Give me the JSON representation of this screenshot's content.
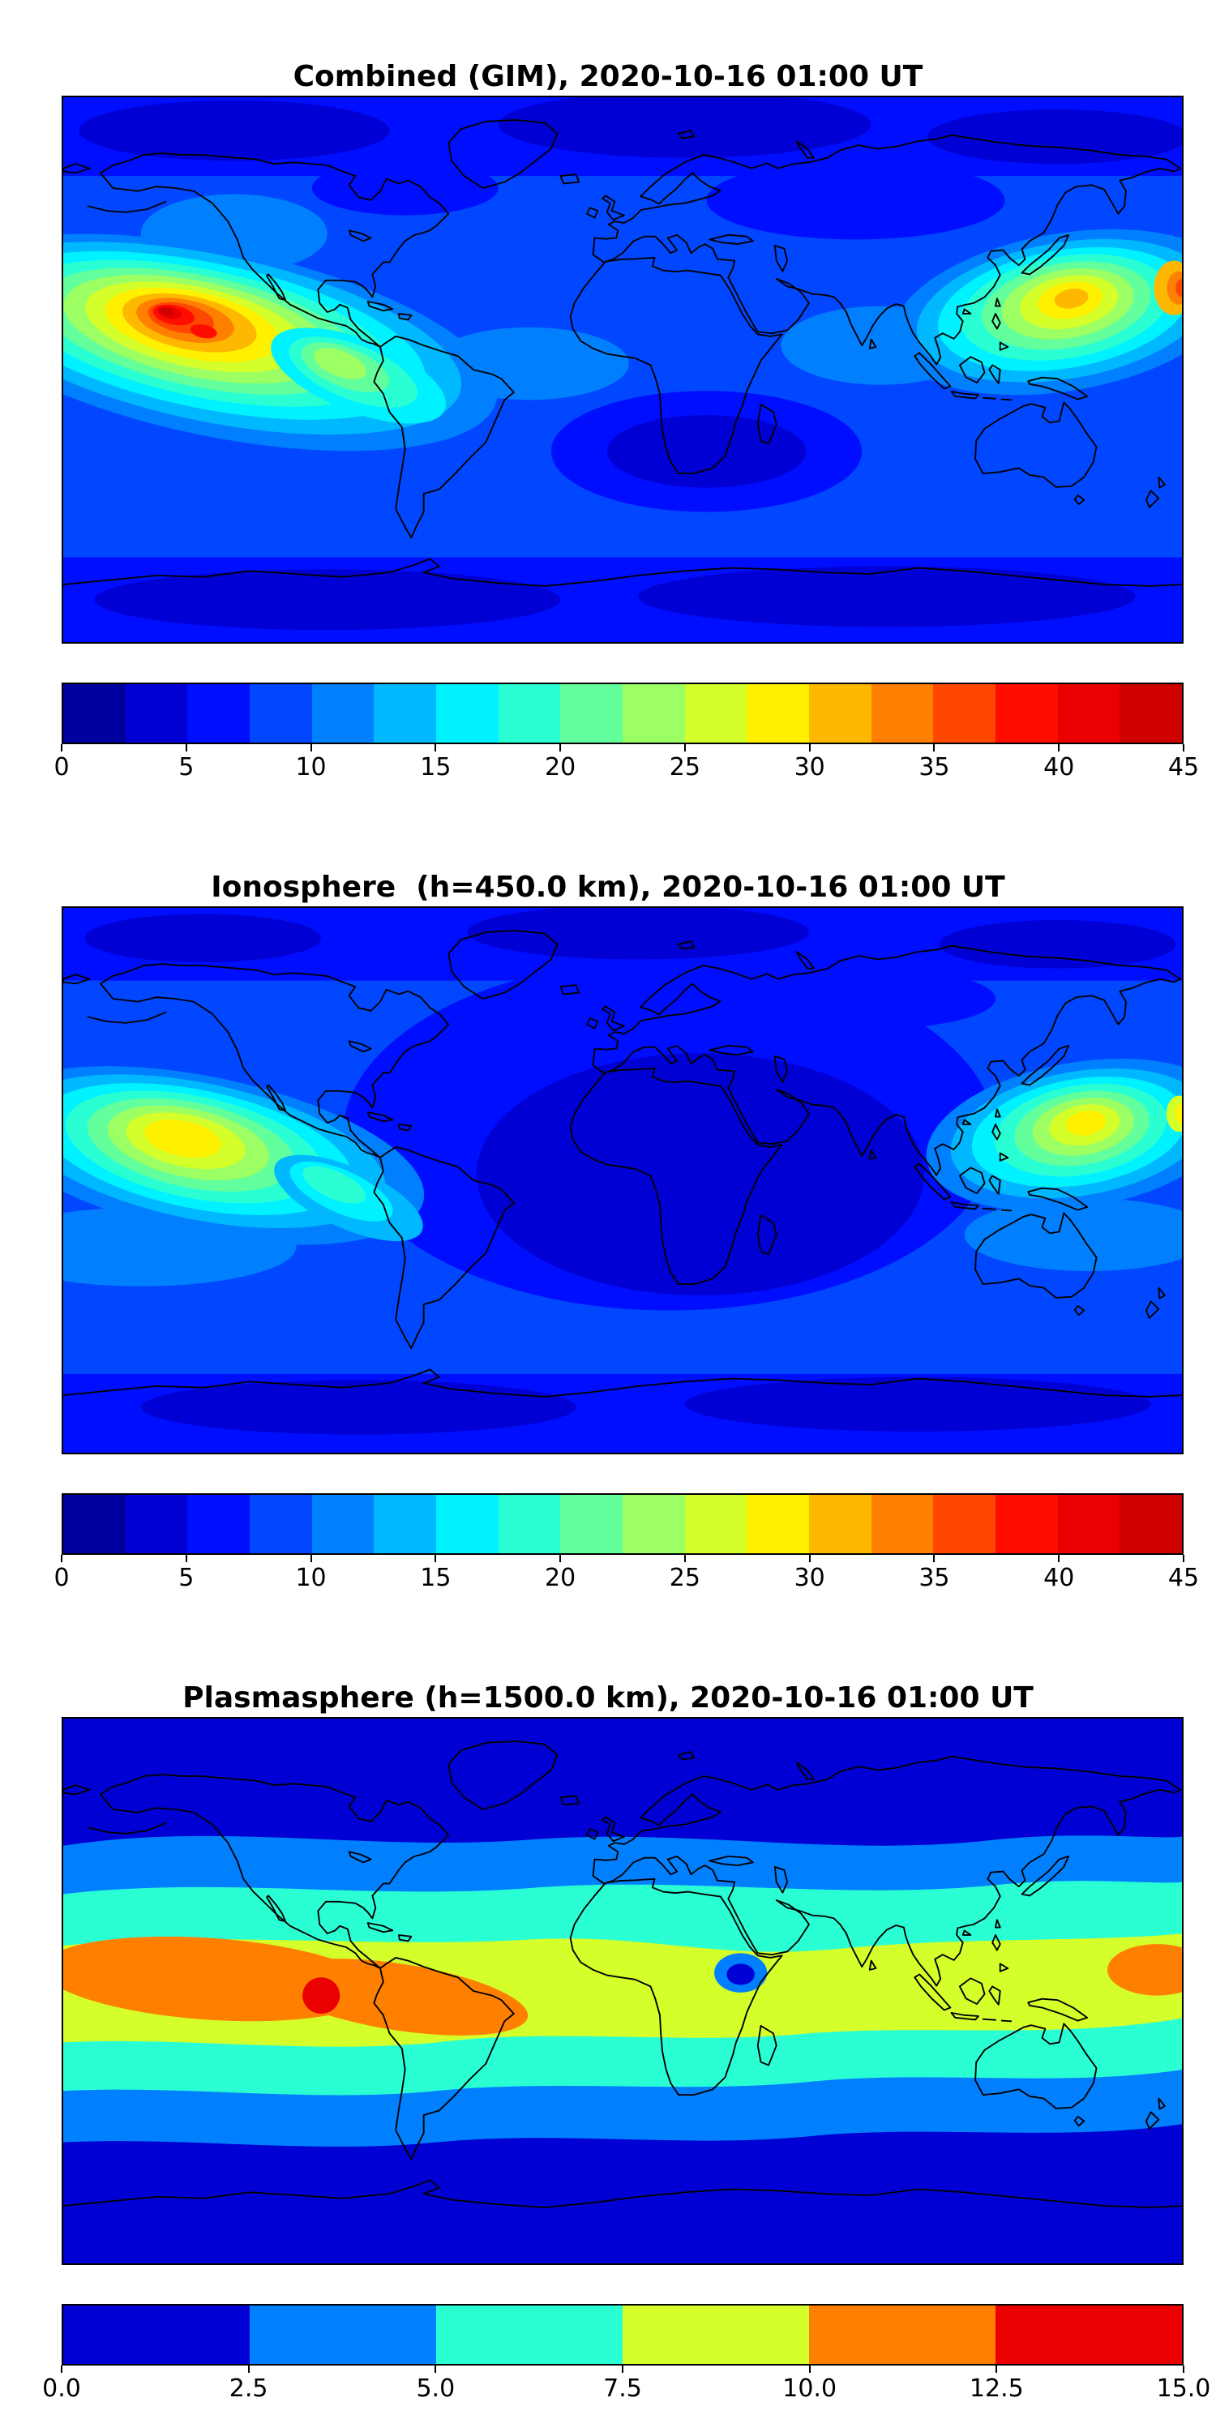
{
  "figure": {
    "background": "#ffffff"
  },
  "chart_data": [
    {
      "type": "heatmap",
      "title": "Combined (GIM), 2020-10-16 01:00 UT",
      "projection": "equirectangular",
      "lon_range": [
        -180,
        180
      ],
      "lat_range": [
        -90,
        90
      ],
      "grid": false,
      "coastlines": true,
      "colorbar": {
        "orientation": "horizontal",
        "vmin": 0,
        "vmax": 45,
        "segment_step": 2.5,
        "tick_labels": [
          "0",
          "5",
          "10",
          "15",
          "20",
          "25",
          "30",
          "35",
          "40",
          "45"
        ],
        "palette": [
          "#00009c",
          "#0000d4",
          "#000eff",
          "#0047ff",
          "#0080ff",
          "#00b8ff",
          "#00f1ff",
          "#2affd4",
          "#63ff9c",
          "#9cff63",
          "#d4ff2a",
          "#fff100",
          "#ffb800",
          "#ff8000",
          "#ff4700",
          "#ff0e00",
          "#ea0000",
          "#ce0000"
        ]
      },
      "features": [
        {
          "name": "equatorial-anomaly-pacific",
          "lon_center": -148,
          "lat_center": 16,
          "peak_value": 44
        },
        {
          "name": "equatorial-anomaly-pacific-second-lobe",
          "lon_center": -135,
          "lat_center": 12,
          "peak_value": 40
        },
        {
          "name": "equatorial-anomaly-east-asia",
          "lon_center": 142,
          "lat_center": 20,
          "peak_value": 34
        },
        {
          "name": "west-pacific-edge-maximum",
          "lon_center": 178,
          "lat_center": 26,
          "peak_value": 38
        },
        {
          "name": "south-indian-ocean-low",
          "lon_center": 28,
          "lat_center": -27,
          "value": 5
        },
        {
          "name": "background-ocean",
          "value": 9
        }
      ]
    },
    {
      "type": "heatmap",
      "title": "Ionosphere  (h=450.0 km), 2020-10-16 01:00 UT",
      "projection": "equirectangular",
      "lon_range": [
        -180,
        180
      ],
      "lat_range": [
        -90,
        90
      ],
      "grid": false,
      "coastlines": true,
      "colorbar": {
        "orientation": "horizontal",
        "vmin": 0,
        "vmax": 45,
        "segment_step": 2.5,
        "tick_labels": [
          "0",
          "5",
          "10",
          "15",
          "20",
          "25",
          "30",
          "35",
          "40",
          "45"
        ],
        "palette": [
          "#00009c",
          "#0000d4",
          "#000eff",
          "#0047ff",
          "#0080ff",
          "#00b8ff",
          "#00f1ff",
          "#2affd4",
          "#63ff9c",
          "#9cff63",
          "#d4ff2a",
          "#fff100",
          "#ffb800",
          "#ff8000",
          "#ff4700",
          "#ff0e00",
          "#ea0000",
          "#ce0000"
        ]
      },
      "features": [
        {
          "name": "equatorial-anomaly-pacific",
          "lon_center": -140,
          "lat_center": 11,
          "peak_value": 29
        },
        {
          "name": "equatorial-anomaly-east-asia",
          "lon_center": 147,
          "lat_center": 17,
          "peak_value": 29
        },
        {
          "name": "west-pacific-edge-maximum",
          "lon_center": 179,
          "lat_center": 22,
          "peak_value": 30
        },
        {
          "name": "africa-indian-ocean-low",
          "lon_center": 25,
          "lat_center": -2,
          "value": 3
        },
        {
          "name": "background-ocean",
          "value": 7
        }
      ]
    },
    {
      "type": "heatmap",
      "title": "Plasmasphere (h=1500.0 km), 2020-10-16 01:00 UT",
      "projection": "equirectangular",
      "lon_range": [
        -180,
        180
      ],
      "lat_range": [
        -90,
        90
      ],
      "grid": false,
      "coastlines": true,
      "colorbar": {
        "orientation": "horizontal",
        "vmin": 0,
        "vmax": 15,
        "segment_step": 2.5,
        "tick_labels": [
          "0.0",
          "2.5",
          "5.0",
          "7.5",
          "10.0",
          "12.5",
          "15.0"
        ],
        "palette": [
          "#0000d4",
          "#0080ff",
          "#2affd4",
          "#d4ff2a",
          "#ff8000",
          "#ea0000"
        ]
      },
      "features": [
        {
          "name": "equatorial-belt-maximum",
          "lon_center": -97,
          "lat_center": -2,
          "peak_value": 14
        },
        {
          "name": "orange-band-americas",
          "lon_min": -180,
          "lon_max": -30,
          "lat_center": -1,
          "value": 11
        },
        {
          "name": "orange-patch-west-pacific-edge",
          "lon_center": 172,
          "lat_center": 7,
          "value": 11
        },
        {
          "name": "yellow-green-belt",
          "lat_min": -18,
          "lat_max": 18,
          "value": 8.5
        },
        {
          "name": "east-africa-depletion",
          "lon_center": 38,
          "lat_center": 6,
          "value": 4
        },
        {
          "name": "high-latitude-background",
          "value": 1.5
        }
      ]
    }
  ]
}
